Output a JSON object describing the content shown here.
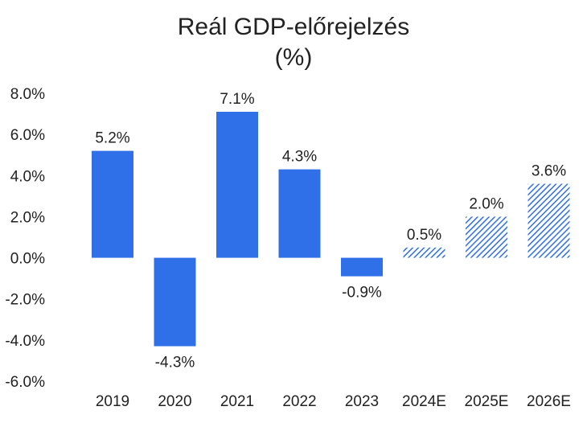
{
  "chart_data": {
    "type": "bar",
    "title": "Reál GDP-előrejelzés",
    "subtitle": "(%)",
    "xlabel": "",
    "ylabel": "",
    "categories": [
      "2019",
      "2020",
      "2021",
      "2022",
      "2023",
      "2024E",
      "2025E",
      "2026E"
    ],
    "values": [
      5.2,
      -4.3,
      7.1,
      4.3,
      -0.9,
      0.5,
      2.0,
      3.6
    ],
    "data_labels": [
      "5.2%",
      "-4.3%",
      "7.1%",
      "4.3%",
      "-0.9%",
      "0.5%",
      "2.0%",
      "3.6%"
    ],
    "estimate": [
      false,
      false,
      false,
      false,
      false,
      true,
      true,
      true
    ],
    "ylim": [
      -6,
      8
    ],
    "yticks": [
      8,
      6,
      4,
      2,
      0,
      -2,
      -4,
      -6
    ],
    "ytick_labels": [
      "8.0%",
      "6.0%",
      "4.0%",
      "2.0%",
      "0.0%",
      "-2.0%",
      "-4.0%",
      "-6.0%"
    ],
    "grid": false,
    "legend": "none",
    "bar_color": "#2f6fe8",
    "estimate_style": "hatched"
  }
}
